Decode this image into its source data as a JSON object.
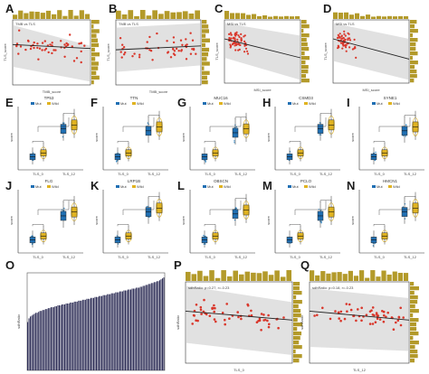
{
  "panels": {
    "labels": [
      "A",
      "B",
      "C",
      "D",
      "E",
      "F",
      "G",
      "H",
      "I",
      "J",
      "K",
      "L",
      "M",
      "N",
      "O",
      "P",
      "Q"
    ]
  },
  "colors": {
    "dot": "#d9372b",
    "marginal": "#b39a2a",
    "band": "#c9c9c9",
    "box_blue": "#1f6fb3",
    "box_gold": "#e0b321",
    "violin_blue": "#2b86c8",
    "waterfall_bar": "#2c2c55"
  },
  "chart_data": [
    {
      "panel": "A",
      "type": "scatter",
      "xlabel": "TMB_score",
      "ylabel": "TLS_score",
      "title": "TMB vs TLS",
      "trend": "slightly decreasing",
      "marginal": "histogram"
    },
    {
      "panel": "B",
      "type": "scatter",
      "xlabel": "TMB_score",
      "ylabel": "TLS_score",
      "title": "TMB vs TLS",
      "trend": "slightly increasing",
      "marginal": "histogram"
    },
    {
      "panel": "C",
      "type": "scatter",
      "xlabel": "MSI_score",
      "ylabel": "TLS_score",
      "title": "MSI vs TLS",
      "trend": "decreasing",
      "marginal": "histogram"
    },
    {
      "panel": "D",
      "type": "scatter",
      "xlabel": "MSI_score",
      "ylabel": "TLS_score",
      "title": "MSI vs TLS",
      "trend": "decreasing",
      "marginal": "histogram"
    },
    {
      "panel": "E",
      "type": "box",
      "gene": "TP53",
      "groups": [
        "TLS_0",
        "TLS_12"
      ],
      "legend": [
        "Mut",
        "Wild"
      ],
      "ylabel": "score"
    },
    {
      "panel": "F",
      "type": "box",
      "gene": "TTN",
      "groups": [
        "TLS_0",
        "TLS_12"
      ],
      "legend": [
        "Mut",
        "Wild"
      ],
      "ylabel": "score"
    },
    {
      "panel": "G",
      "type": "box",
      "gene": "MUC16",
      "groups": [
        "TLS_0",
        "TLS_12"
      ],
      "legend": [
        "Mut",
        "Wild"
      ],
      "ylabel": "score"
    },
    {
      "panel": "H",
      "type": "box",
      "gene": "CSMD3",
      "groups": [
        "TLS_0",
        "TLS_12"
      ],
      "legend": [
        "Mut",
        "Wild"
      ],
      "ylabel": "score"
    },
    {
      "panel": "I",
      "type": "box",
      "gene": "SYNE1",
      "groups": [
        "TLS_0",
        "TLS_12"
      ],
      "legend": [
        "Mut",
        "Wild"
      ],
      "ylabel": "score"
    },
    {
      "panel": "J",
      "type": "box",
      "gene": "FLG",
      "groups": [
        "TLS_0",
        "TLS_12"
      ],
      "legend": [
        "Mut",
        "Wild"
      ],
      "ylabel": "score"
    },
    {
      "panel": "K",
      "type": "box",
      "gene": "LRP1B",
      "groups": [
        "TLS_0",
        "TLS_12"
      ],
      "legend": [
        "Mut",
        "Wild"
      ],
      "ylabel": "score"
    },
    {
      "panel": "L",
      "type": "box",
      "gene": "OBSCN",
      "groups": [
        "TLS_0",
        "TLS_12"
      ],
      "legend": [
        "Mut",
        "Wild"
      ],
      "ylabel": "score"
    },
    {
      "panel": "M",
      "type": "box",
      "gene": "PCLO",
      "groups": [
        "TLS_0",
        "TLS_12"
      ],
      "legend": [
        "Mut",
        "Wild"
      ],
      "ylabel": "score"
    },
    {
      "panel": "N",
      "type": "box",
      "gene": "HMCN1",
      "groups": [
        "TLS_0",
        "TLS_12"
      ],
      "legend": [
        "Mut",
        "Wild"
      ],
      "ylabel": "score"
    },
    {
      "panel": "O",
      "type": "bar",
      "ylabel": "sdhRatio",
      "description": "waterfall of ~100 samples sorted ascending",
      "values": [
        0.52,
        0.56,
        0.58,
        0.59,
        0.6,
        0.61,
        0.62,
        0.62,
        0.63,
        0.64,
        0.64,
        0.65,
        0.65,
        0.66,
        0.66,
        0.67,
        0.67,
        0.68,
        0.68,
        0.68,
        0.69,
        0.69,
        0.7,
        0.7,
        0.7,
        0.71,
        0.71,
        0.71,
        0.72,
        0.72,
        0.72,
        0.73,
        0.73,
        0.73,
        0.74,
        0.74,
        0.74,
        0.75,
        0.75,
        0.75,
        0.76,
        0.76,
        0.76,
        0.77,
        0.77,
        0.77,
        0.78,
        0.78,
        0.78,
        0.79,
        0.79,
        0.79,
        0.8,
        0.8,
        0.8,
        0.81,
        0.81,
        0.81,
        0.82,
        0.82,
        0.82,
        0.83,
        0.83,
        0.83,
        0.84,
        0.84,
        0.84,
        0.85,
        0.85,
        0.85,
        0.86,
        0.86,
        0.86,
        0.87,
        0.87,
        0.87,
        0.88,
        0.88,
        0.88,
        0.89,
        0.89,
        0.89,
        0.9,
        0.9,
        0.91,
        0.91,
        0.92,
        0.92,
        0.93,
        0.93,
        0.94,
        0.94,
        0.95,
        0.95,
        0.96,
        0.96,
        0.97,
        0.98,
        0.99,
        1.0
      ]
    },
    {
      "panel": "P",
      "type": "scatter",
      "xlabel": "TLS_0",
      "ylabel": "sdhRatio",
      "annotation": "sdhRatio: p=0.27, r=-0.23",
      "trend": "decreasing",
      "marginal": "histogram"
    },
    {
      "panel": "Q",
      "type": "scatter",
      "xlabel": "TLS_12",
      "ylabel": "sdhRatio",
      "annotation": "sdhRatio: p=0.18, r=-0.23",
      "trend": "decreasing",
      "marginal": "histogram"
    }
  ]
}
